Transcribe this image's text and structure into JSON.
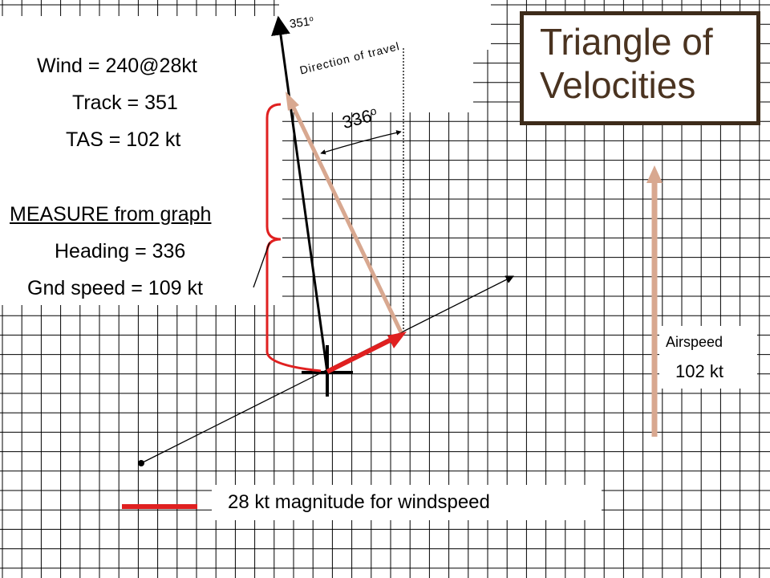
{
  "title": {
    "line1": "Triangle of",
    "line2": "Velocities"
  },
  "given": {
    "wind": "Wind = 240@28kt",
    "track": "Track = 351",
    "tas": "TAS = 102 kt"
  },
  "measure": {
    "heading_label": "MEASURE from graph",
    "heading": "Heading = 336",
    "ground_speed": "Gnd speed = 109 kt"
  },
  "annotations": {
    "track_deg": "351",
    "heading_deg": "336",
    "degree_mark": "o",
    "direction_of_travel": "Direction of travel"
  },
  "airspeed": {
    "label": "Airspeed",
    "value": "102 kt"
  },
  "legend": {
    "wind_scale": "28 kt magnitude for windspeed"
  },
  "colors": {
    "grid": "#000000",
    "wind_vector": "#e02020",
    "airspeed_vector": "#d8a890",
    "track_line": "#000000",
    "bracket": "#e02020",
    "title_border": "#3d2b1a",
    "title_text": "#4a3320"
  }
}
